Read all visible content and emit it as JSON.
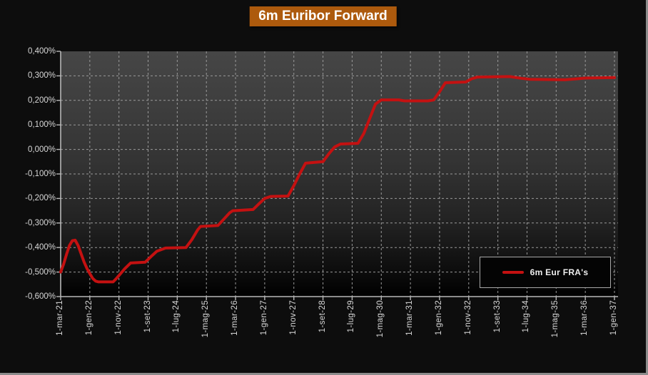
{
  "window": {
    "background": "#0d0d0d",
    "border_color": "#8c8c8c"
  },
  "title": {
    "text": "6m Euribor Forward",
    "bg_color": "#ad5a0d",
    "text_color": "#ffffff"
  },
  "legend": {
    "label": "6m Eur FRA's",
    "line_color": "#c41111"
  },
  "chart_data": {
    "type": "line",
    "title": "6m Euribor Forward",
    "xlabel": "",
    "ylabel": "",
    "ylim": [
      -0.6,
      0.4
    ],
    "y_tick_step": 0.1,
    "decimal_separator": ",",
    "value_unit": "percent",
    "grid": "dashed",
    "background": "dark-gradient",
    "legend_position": "inside-bottom-right",
    "y_tick_labels": [
      "0,400%",
      "0,300%",
      "0,200%",
      "0,100%",
      "0,000%",
      "-0,100%",
      "-0,200%",
      "-0,300%",
      "-0,400%",
      "-0,500%",
      "-0,600%"
    ],
    "x_tick_labels": [
      "1-mar-21",
      "1-gen-22",
      "1-nov-22",
      "1-set-23",
      "1-lug-24",
      "1-mag-25",
      "1-mar-26",
      "1-gen-27",
      "1-nov-27",
      "1-set-28",
      "1-lug-29",
      "1-mag-30",
      "1-mar-31",
      "1-gen-32",
      "1-nov-32",
      "1-set-33",
      "1-lug-34",
      "1-mag-35",
      "1-mar-36",
      "1-gen-37"
    ],
    "x_tick_interval_months": 10,
    "x_range": [
      "1-mar-21",
      "1-gen-37"
    ],
    "series": [
      {
        "name": "6m Eur FRA's",
        "color": "#c41111",
        "points": [
          [
            "1-mar-21",
            -0.5
          ],
          [
            "1-apr-21",
            -0.468
          ],
          [
            "1-mag-21",
            -0.428
          ],
          [
            "1-giu-21",
            -0.392
          ],
          [
            "1-lug-21",
            -0.372
          ],
          [
            "1-ago-21",
            -0.37
          ],
          [
            "1-set-21",
            -0.392
          ],
          [
            "1-ott-21",
            -0.425
          ],
          [
            "1-nov-21",
            -0.458
          ],
          [
            "1-dic-21",
            -0.485
          ],
          [
            "1-gen-22",
            -0.506
          ],
          [
            "1-feb-22",
            -0.526
          ],
          [
            "1-mar-22",
            -0.537
          ],
          [
            "1-apr-22",
            -0.54
          ],
          [
            "1-set-22",
            -0.54
          ],
          [
            "1-ott-22",
            -0.528
          ],
          [
            "1-nov-22",
            -0.514
          ],
          [
            "1-gen-23",
            -0.486
          ],
          [
            "1-mar-23",
            -0.463
          ],
          [
            "1-ago-23",
            -0.46
          ],
          [
            "1-ott-23",
            -0.437
          ],
          [
            "1-dic-23",
            -0.415
          ],
          [
            "1-mar-24",
            -0.402
          ],
          [
            "1-ott-24",
            -0.4
          ],
          [
            "1-dic-24",
            -0.368
          ],
          [
            "1-feb-25",
            -0.328
          ],
          [
            "1-mar-25",
            -0.314
          ],
          [
            "1-set-25",
            -0.31
          ],
          [
            "1-nov-25",
            -0.284
          ],
          [
            "1-gen-26",
            -0.258
          ],
          [
            "1-feb-26",
            -0.25
          ],
          [
            "1-set-26",
            -0.245
          ],
          [
            "1-nov-26",
            -0.222
          ],
          [
            "1-gen-27",
            -0.2
          ],
          [
            "1-mar-27",
            -0.192
          ],
          [
            "1-set-27",
            -0.19
          ],
          [
            "1-nov-27",
            -0.148
          ],
          [
            "1-gen-28",
            -0.1
          ],
          [
            "1-mar-28",
            -0.056
          ],
          [
            "1-set-28",
            -0.05
          ],
          [
            "1-nov-28",
            -0.018
          ],
          [
            "1-gen-29",
            0.01
          ],
          [
            "1-mar-29",
            0.022
          ],
          [
            "1-set-29",
            0.025
          ],
          [
            "1-nov-29",
            0.065
          ],
          [
            "1-gen-30",
            0.125
          ],
          [
            "1-mar-30",
            0.185
          ],
          [
            "1-mag-30",
            0.202
          ],
          [
            "1-nov-30",
            0.202
          ],
          [
            "1-gen-31",
            0.198
          ],
          [
            "1-set-31",
            0.198
          ],
          [
            "1-nov-31",
            0.202
          ],
          [
            "1-gen-32",
            0.235
          ],
          [
            "1-mar-32",
            0.272
          ],
          [
            "1-ott-32",
            0.275
          ],
          [
            "1-dic-32",
            0.288
          ],
          [
            "1-feb-33",
            0.295
          ],
          [
            "1-gen-34",
            0.297
          ],
          [
            "1-mag-34",
            0.29
          ],
          [
            "1-ago-34",
            0.286
          ],
          [
            "1-ago-35",
            0.284
          ],
          [
            "1-gen-36",
            0.289
          ],
          [
            "1-mar-36",
            0.291
          ],
          [
            "1-gen-37",
            0.293
          ]
        ]
      }
    ]
  }
}
